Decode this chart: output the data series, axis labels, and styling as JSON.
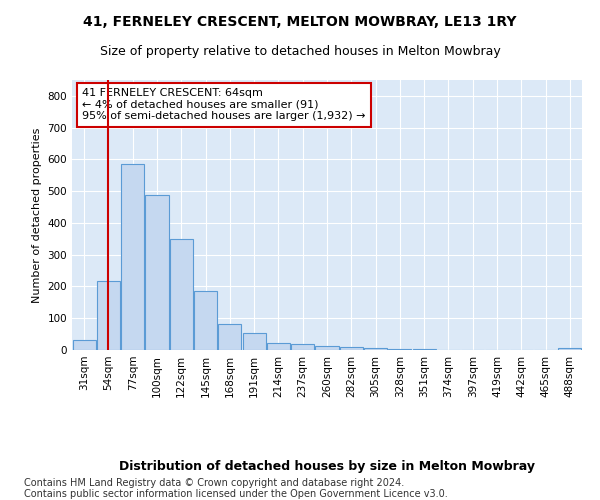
{
  "title1": "41, FERNELEY CRESCENT, MELTON MOWBRAY, LE13 1RY",
  "title2": "Size of property relative to detached houses in Melton Mowbray",
  "xlabel": "Distribution of detached houses by size in Melton Mowbray",
  "ylabel": "Number of detached properties",
  "footer1": "Contains HM Land Registry data © Crown copyright and database right 2024.",
  "footer2": "Contains public sector information licensed under the Open Government Licence v3.0.",
  "annotation_line1": "41 FERNELEY CRESCENT: 64sqm",
  "annotation_line2": "← 4% of detached houses are smaller (91)",
  "annotation_line3": "95% of semi-detached houses are larger (1,932) →",
  "bar_categories": [
    "31sqm",
    "54sqm",
    "77sqm",
    "100sqm",
    "122sqm",
    "145sqm",
    "168sqm",
    "191sqm",
    "214sqm",
    "237sqm",
    "260sqm",
    "282sqm",
    "305sqm",
    "328sqm",
    "351sqm",
    "374sqm",
    "397sqm",
    "419sqm",
    "442sqm",
    "465sqm",
    "488sqm"
  ],
  "bar_values": [
    32,
    218,
    585,
    488,
    350,
    185,
    83,
    55,
    22,
    18,
    14,
    9,
    5,
    3,
    2,
    1,
    1,
    0,
    0,
    0,
    5
  ],
  "bar_color": "#c5d8f0",
  "bar_edge_color": "#5b9bd5",
  "vline_x": 1,
  "vline_color": "#cc0000",
  "annotation_box_color": "#cc0000",
  "ylim": [
    0,
    850
  ],
  "yticks": [
    0,
    100,
    200,
    300,
    400,
    500,
    600,
    700,
    800
  ],
  "plot_bg": "#dce9f7",
  "grid_color": "#ffffff",
  "title1_fontsize": 10,
  "title2_fontsize": 9,
  "xlabel_fontsize": 9,
  "ylabel_fontsize": 8,
  "tick_fontsize": 7.5,
  "annotation_fontsize": 8,
  "footer_fontsize": 7
}
